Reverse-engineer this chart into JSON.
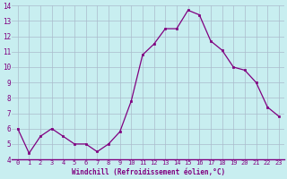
{
  "x": [
    0,
    1,
    2,
    3,
    4,
    5,
    6,
    7,
    8,
    9,
    10,
    11,
    12,
    13,
    14,
    15,
    16,
    17,
    18,
    19,
    20,
    21,
    22,
    23
  ],
  "y": [
    6.0,
    4.4,
    5.5,
    6.0,
    5.5,
    5.0,
    5.0,
    4.5,
    5.0,
    5.8,
    7.8,
    10.8,
    11.5,
    12.5,
    12.5,
    13.7,
    13.4,
    11.7,
    11.1,
    10.0,
    9.8,
    9.0,
    7.4,
    6.8
  ],
  "line_color": "#800080",
  "marker_color": "#800080",
  "bg_color": "#c8eef0",
  "grid_color": "#aabbcc",
  "xlabel": "Windchill (Refroidissement éolien,°C)",
  "xlabel_color": "#800080",
  "tick_color": "#800080",
  "spine_color": "#800080",
  "ylim": [
    4,
    14
  ],
  "yticks": [
    4,
    5,
    6,
    7,
    8,
    9,
    10,
    11,
    12,
    13,
    14
  ],
  "xlim": [
    -0.5,
    23.5
  ],
  "xticks": [
    0,
    1,
    2,
    3,
    4,
    5,
    6,
    7,
    8,
    9,
    10,
    11,
    12,
    13,
    14,
    15,
    16,
    17,
    18,
    19,
    20,
    21,
    22,
    23
  ]
}
